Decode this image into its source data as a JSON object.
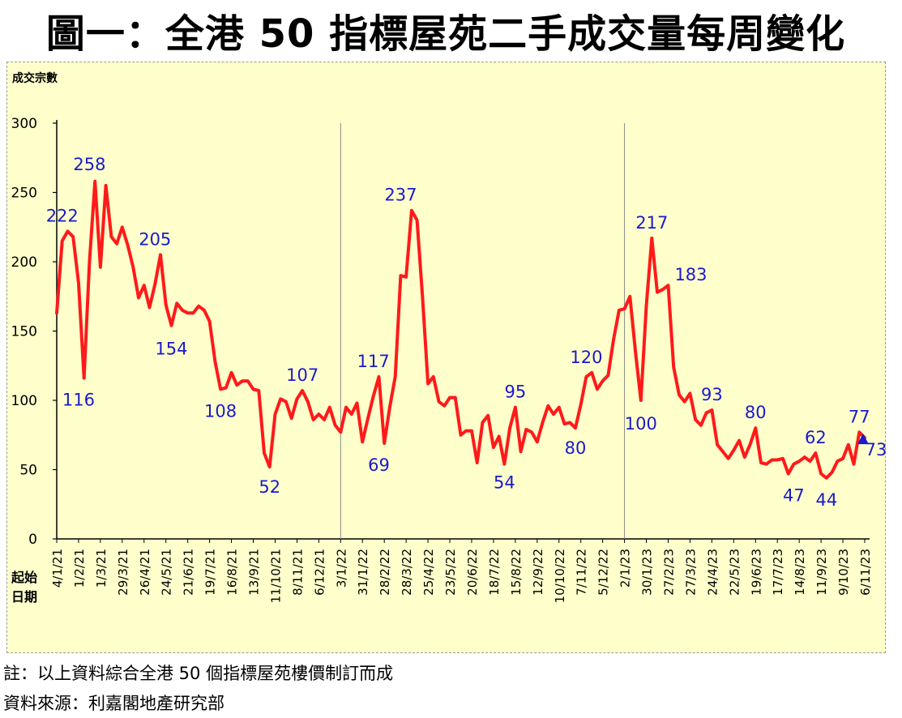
{
  "title": "圖一：全港 50 指標屋苑二手成交量每周變化",
  "notes": {
    "note1": "註：以上資料綜合全港 50 個指標屋苑樓價制訂而成",
    "note2": "資料來源：利嘉閣地產研究部"
  },
  "colors": {
    "line": "#ff1a1a",
    "label": "#1a1acc",
    "background": "#ffffcc",
    "marker": "#1a1acc"
  },
  "chart_data": {
    "type": "line",
    "ylabel": "成交宗數",
    "xlabel_lines": [
      "起始",
      "日期"
    ],
    "ylim": [
      0,
      300
    ],
    "yticks": [
      0,
      50,
      100,
      150,
      200,
      250,
      300
    ],
    "xticks": [
      "4/1/21",
      "1/2/21",
      "1/3/21",
      "29/3/21",
      "26/4/21",
      "24/5/21",
      "21/6/21",
      "19/7/21",
      "16/8/21",
      "13/9/21",
      "11/10/21",
      "8/11/21",
      "6/12/21",
      "3/1/22",
      "31/1/22",
      "28/2/22",
      "28/3/22",
      "25/4/22",
      "23/5/22",
      "20/6/22",
      "18/7/22",
      "15/8/22",
      "12/9/22",
      "10/10/22",
      "7/11/22",
      "5/12/22",
      "2/1/23",
      "30/1/23",
      "27/2/23",
      "27/3/23",
      "24/4/23",
      "22/5/23",
      "19/6/23",
      "17/7/23",
      "14/8/23",
      "11/9/23",
      "9/10/23",
      "6/11/23"
    ],
    "year_dividers": [
      "3/1/22",
      "2/1/23"
    ],
    "grid": false,
    "series": [
      {
        "values": [
          163,
          215,
          222,
          218,
          185,
          116,
          200,
          258,
          196,
          255,
          218,
          213,
          225,
          212,
          196,
          174,
          183,
          167,
          184,
          205,
          169,
          154,
          170,
          165,
          163,
          163,
          168,
          165,
          157,
          128,
          108,
          109,
          120,
          111,
          114,
          114,
          108,
          107,
          62,
          52,
          90,
          101,
          99,
          87,
          101,
          107,
          99,
          86,
          90,
          86,
          95,
          82,
          77,
          95,
          90,
          98,
          70,
          87,
          103,
          117,
          69,
          95,
          117,
          190,
          189,
          237,
          230,
          175,
          112,
          117,
          99,
          96,
          102,
          102,
          75,
          78,
          78,
          55,
          84,
          89,
          66,
          74,
          54,
          80,
          95,
          63,
          79,
          77,
          70,
          84,
          96,
          90,
          95,
          83,
          84,
          80,
          97,
          117,
          120,
          108,
          114,
          118,
          144,
          165,
          166,
          175,
          135,
          100,
          168,
          217,
          178,
          180,
          183,
          124,
          104,
          99,
          105,
          86,
          82,
          91,
          93,
          68,
          63,
          58,
          64,
          71,
          59,
          68,
          80,
          55,
          54,
          57,
          57,
          58,
          47,
          54,
          56,
          59,
          56,
          62,
          47,
          44,
          48,
          56,
          58,
          68,
          54,
          77,
          73
        ]
      }
    ],
    "annotations": [
      {
        "text": "222",
        "x": "11/1/21",
        "y": 222
      },
      {
        "text": "116",
        "x": "1/2/21",
        "y": 116
      },
      {
        "text": "258",
        "x": "15/2/21",
        "y": 258
      },
      {
        "text": "205",
        "x": "10/5/21",
        "y": 205
      },
      {
        "text": "154",
        "x": "31/5/21",
        "y": 154
      },
      {
        "text": "108",
        "x": "2/8/21",
        "y": 108
      },
      {
        "text": "52",
        "x": "4/10/21",
        "y": 52
      },
      {
        "text": "107",
        "x": "15/11/21",
        "y": 107
      },
      {
        "text": "117",
        "x": "14/2/22",
        "y": 117
      },
      {
        "text": "69",
        "x": "21/2/22",
        "y": 69
      },
      {
        "text": "237",
        "x": "21/3/22",
        "y": 237
      },
      {
        "text": "54",
        "x": "1/8/22",
        "y": 54
      },
      {
        "text": "95",
        "x": "15/8/22",
        "y": 95
      },
      {
        "text": "80",
        "x": "31/10/22",
        "y": 80
      },
      {
        "text": "120",
        "x": "14/11/22",
        "y": 120
      },
      {
        "text": "100",
        "x": "23/1/23",
        "y": 100
      },
      {
        "text": "217",
        "x": "6/2/23",
        "y": 217
      },
      {
        "text": "183",
        "x": "27/2/23",
        "y": 183
      },
      {
        "text": "93",
        "x": "24/4/23",
        "y": 93
      },
      {
        "text": "80",
        "x": "19/6/23",
        "y": 80
      },
      {
        "text": "47",
        "x": "7/8/23",
        "y": 47
      },
      {
        "text": "62",
        "x": "4/9/23",
        "y": 62
      },
      {
        "text": "44",
        "x": "18/9/23",
        "y": 44
      },
      {
        "text": "77",
        "x": "30/10/23",
        "y": 77
      },
      {
        "text": "73",
        "x": "6/11/23",
        "y": 73
      }
    ]
  }
}
